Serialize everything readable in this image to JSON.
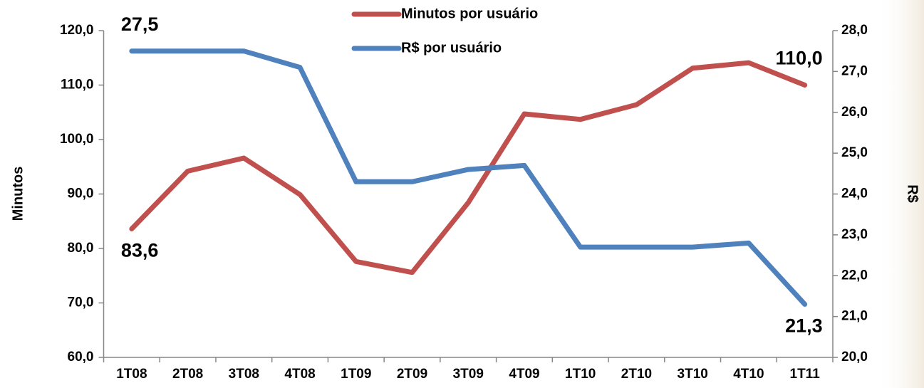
{
  "chart_data": {
    "type": "line",
    "categories": [
      "1T08",
      "2T08",
      "3T08",
      "4T08",
      "1T09",
      "2T09",
      "3T09",
      "4T09",
      "1T10",
      "2T10",
      "3T10",
      "4T10",
      "1T11"
    ],
    "y_label": "Minutos",
    "y2_label": "R$",
    "ylim": [
      60,
      120
    ],
    "yticks": [
      {
        "value": 60,
        "label": "60,0"
      },
      {
        "value": 70,
        "label": "70,0"
      },
      {
        "value": 80,
        "label": "80,0"
      },
      {
        "value": 90,
        "label": "90,0"
      },
      {
        "value": 100,
        "label": "100,0"
      },
      {
        "value": 110,
        "label": "110,0"
      },
      {
        "value": 120,
        "label": "120,0"
      }
    ],
    "y2lim": [
      20,
      28
    ],
    "y2ticks": [
      {
        "value": 20,
        "label": "20,0"
      },
      {
        "value": 21,
        "label": "21,0"
      },
      {
        "value": 22,
        "label": "22,0"
      },
      {
        "value": 23,
        "label": "23,0"
      },
      {
        "value": 24,
        "label": "24,0"
      },
      {
        "value": 25,
        "label": "25,0"
      },
      {
        "value": 26,
        "label": "26,0"
      },
      {
        "value": 27,
        "label": "27,0"
      },
      {
        "value": 28,
        "label": "28,0"
      }
    ],
    "legend": "top",
    "series": [
      {
        "name": "Minutos por usuário",
        "color": "#c0504d",
        "values": [
          83.6,
          94.2,
          96.6,
          89.9,
          77.6,
          75.6,
          88.4,
          104.7,
          103.7,
          106.4,
          113.1,
          114.1,
          110.0
        ],
        "value_labels": [
          "83,6",
          null,
          null,
          null,
          null,
          null,
          null,
          null,
          null,
          null,
          null,
          null,
          "110,0"
        ]
      },
      {
        "name": "R$ por usuário",
        "color": "#4f81bd",
        "axis": "y2",
        "values": [
          27.5,
          27.5,
          27.5,
          27.1,
          24.3,
          24.3,
          24.6,
          24.7,
          22.7,
          22.7,
          22.7,
          22.8,
          21.3
        ],
        "value_labels": [
          "27,5",
          null,
          null,
          null,
          null,
          null,
          null,
          null,
          null,
          null,
          null,
          null,
          "21,3"
        ]
      }
    ]
  }
}
